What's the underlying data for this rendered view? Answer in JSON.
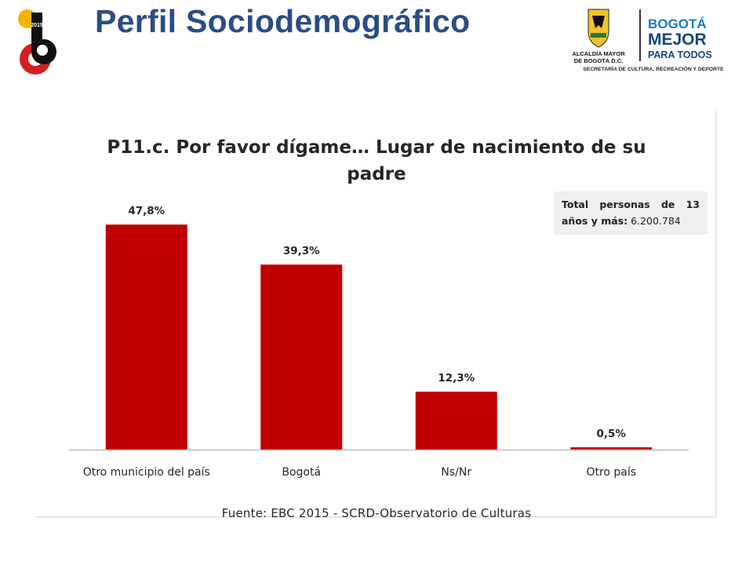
{
  "header": {
    "title": "Perfil Sociodemográfico",
    "logo_left_text": "2015",
    "logo_right": {
      "line1": "ALCALDÍA MAYOR",
      "line2": "DE BOGOTÁ D.C.",
      "slogan_top": "BOGOTÁ",
      "slogan_mid": "MEJOR",
      "slogan_bot": "PARA TODOS",
      "department": "SECRETARÍA DE CULTURA, RECREACIÓN Y DEPORTE"
    }
  },
  "info_box": {
    "label": "Total personas de 13 años y más:",
    "value": "6.200.784"
  },
  "source": "Fuente: EBC 2015 - SCRD-Observatorio de Culturas",
  "colors": {
    "bar": "#c00000",
    "title": "#2b4c86",
    "axis": "#bfbfbf"
  },
  "chart_data": {
    "type": "bar",
    "title_lines": [
      "P11.c. Por favor dígame… Lugar de nacimiento de su",
      "padre"
    ],
    "categories": [
      "Otro municipio del país",
      "Bogotá",
      "Ns/Nr",
      "Otro país"
    ],
    "values": [
      47.8,
      39.3,
      12.3,
      0.5
    ],
    "value_labels": [
      "47,8%",
      "39,3%",
      "12,3%",
      "0,5%"
    ],
    "unit": "%",
    "xlabel": "",
    "ylabel": "",
    "ylim": [
      0,
      50
    ],
    "grid": false,
    "legend": "none"
  }
}
